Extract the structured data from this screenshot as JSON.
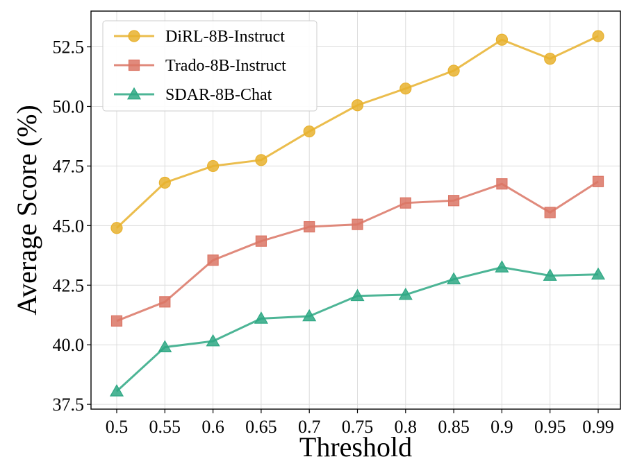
{
  "chart_data": {
    "type": "line",
    "title": "",
    "xlabel": "Threshold",
    "ylabel": "Average Score (%)",
    "categories": [
      "0.5",
      "0.55",
      "0.6",
      "0.65",
      "0.7",
      "0.75",
      "0.8",
      "0.85",
      "0.9",
      "0.95",
      "0.99"
    ],
    "ylim": [
      37.3,
      54.0
    ],
    "yticks": [
      37.5,
      40.0,
      42.5,
      45.0,
      47.5,
      50.0,
      52.5
    ],
    "ytick_labels": [
      "37.5",
      "40.0",
      "42.5",
      "45.0",
      "47.5",
      "50.0",
      "52.5"
    ],
    "grid": true,
    "legend_position": "top-left",
    "series": [
      {
        "name": "DiRL-8B-Instruct",
        "color": "#E8B12E",
        "marker": "circle",
        "values": [
          44.9,
          46.8,
          47.5,
          47.75,
          48.95,
          50.05,
          50.75,
          51.5,
          52.8,
          52.0,
          52.95
        ]
      },
      {
        "name": "Trado-8B-Instruct",
        "color": "#DB7565",
        "marker": "square",
        "values": [
          41.0,
          41.8,
          43.55,
          44.35,
          44.95,
          45.05,
          45.95,
          46.05,
          46.75,
          45.55,
          46.85
        ]
      },
      {
        "name": "SDAR-8B-Chat",
        "color": "#2EA884",
        "marker": "triangle",
        "values": [
          38.05,
          39.9,
          40.15,
          41.1,
          41.2,
          42.05,
          42.1,
          42.75,
          43.25,
          42.9,
          42.95
        ]
      }
    ]
  }
}
